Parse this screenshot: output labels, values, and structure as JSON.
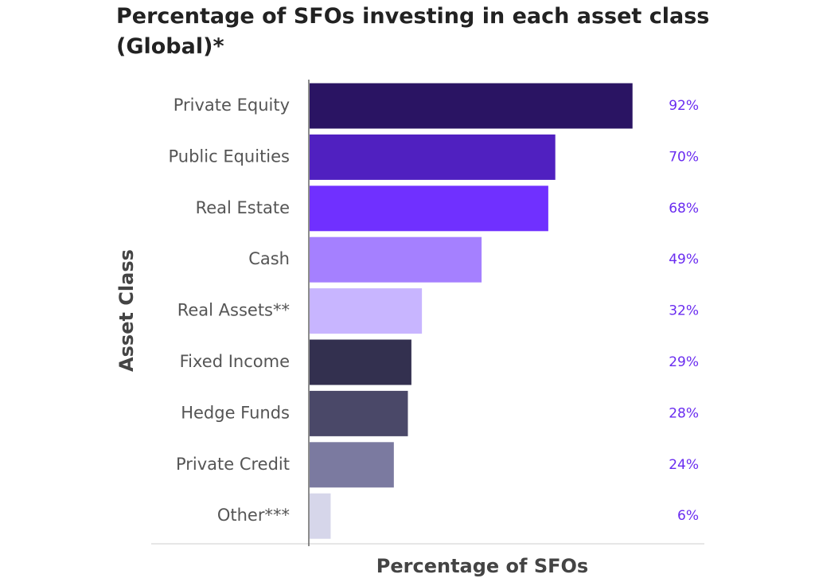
{
  "chart_data": {
    "type": "barh",
    "title": "Percentage of SFOs investing in each asset class (Global)*",
    "x_label": "Percentage of SFOs",
    "y_label": "Asset Class",
    "categories": [
      "Private Equity",
      "Public Equities",
      "Real Estate",
      "Cash",
      "Real Assets**",
      "Fixed Income",
      "Hedge Funds",
      "Private Credit",
      "Other***"
    ],
    "values": [
      92,
      70,
      68,
      49,
      32,
      29,
      28,
      24,
      6
    ],
    "value_labels": [
      "92%",
      "70%",
      "68%",
      "49%",
      "32%",
      "29%",
      "28%",
      "24%",
      "6%"
    ],
    "colors": [
      "#2a1463",
      "#5020c0",
      "#7030ff",
      "#a580ff",
      "#c8b5ff",
      "#33304f",
      "#4a4868",
      "#7b7aa0",
      "#d6d6ea"
    ],
    "xlim": [
      0,
      100
    ]
  }
}
